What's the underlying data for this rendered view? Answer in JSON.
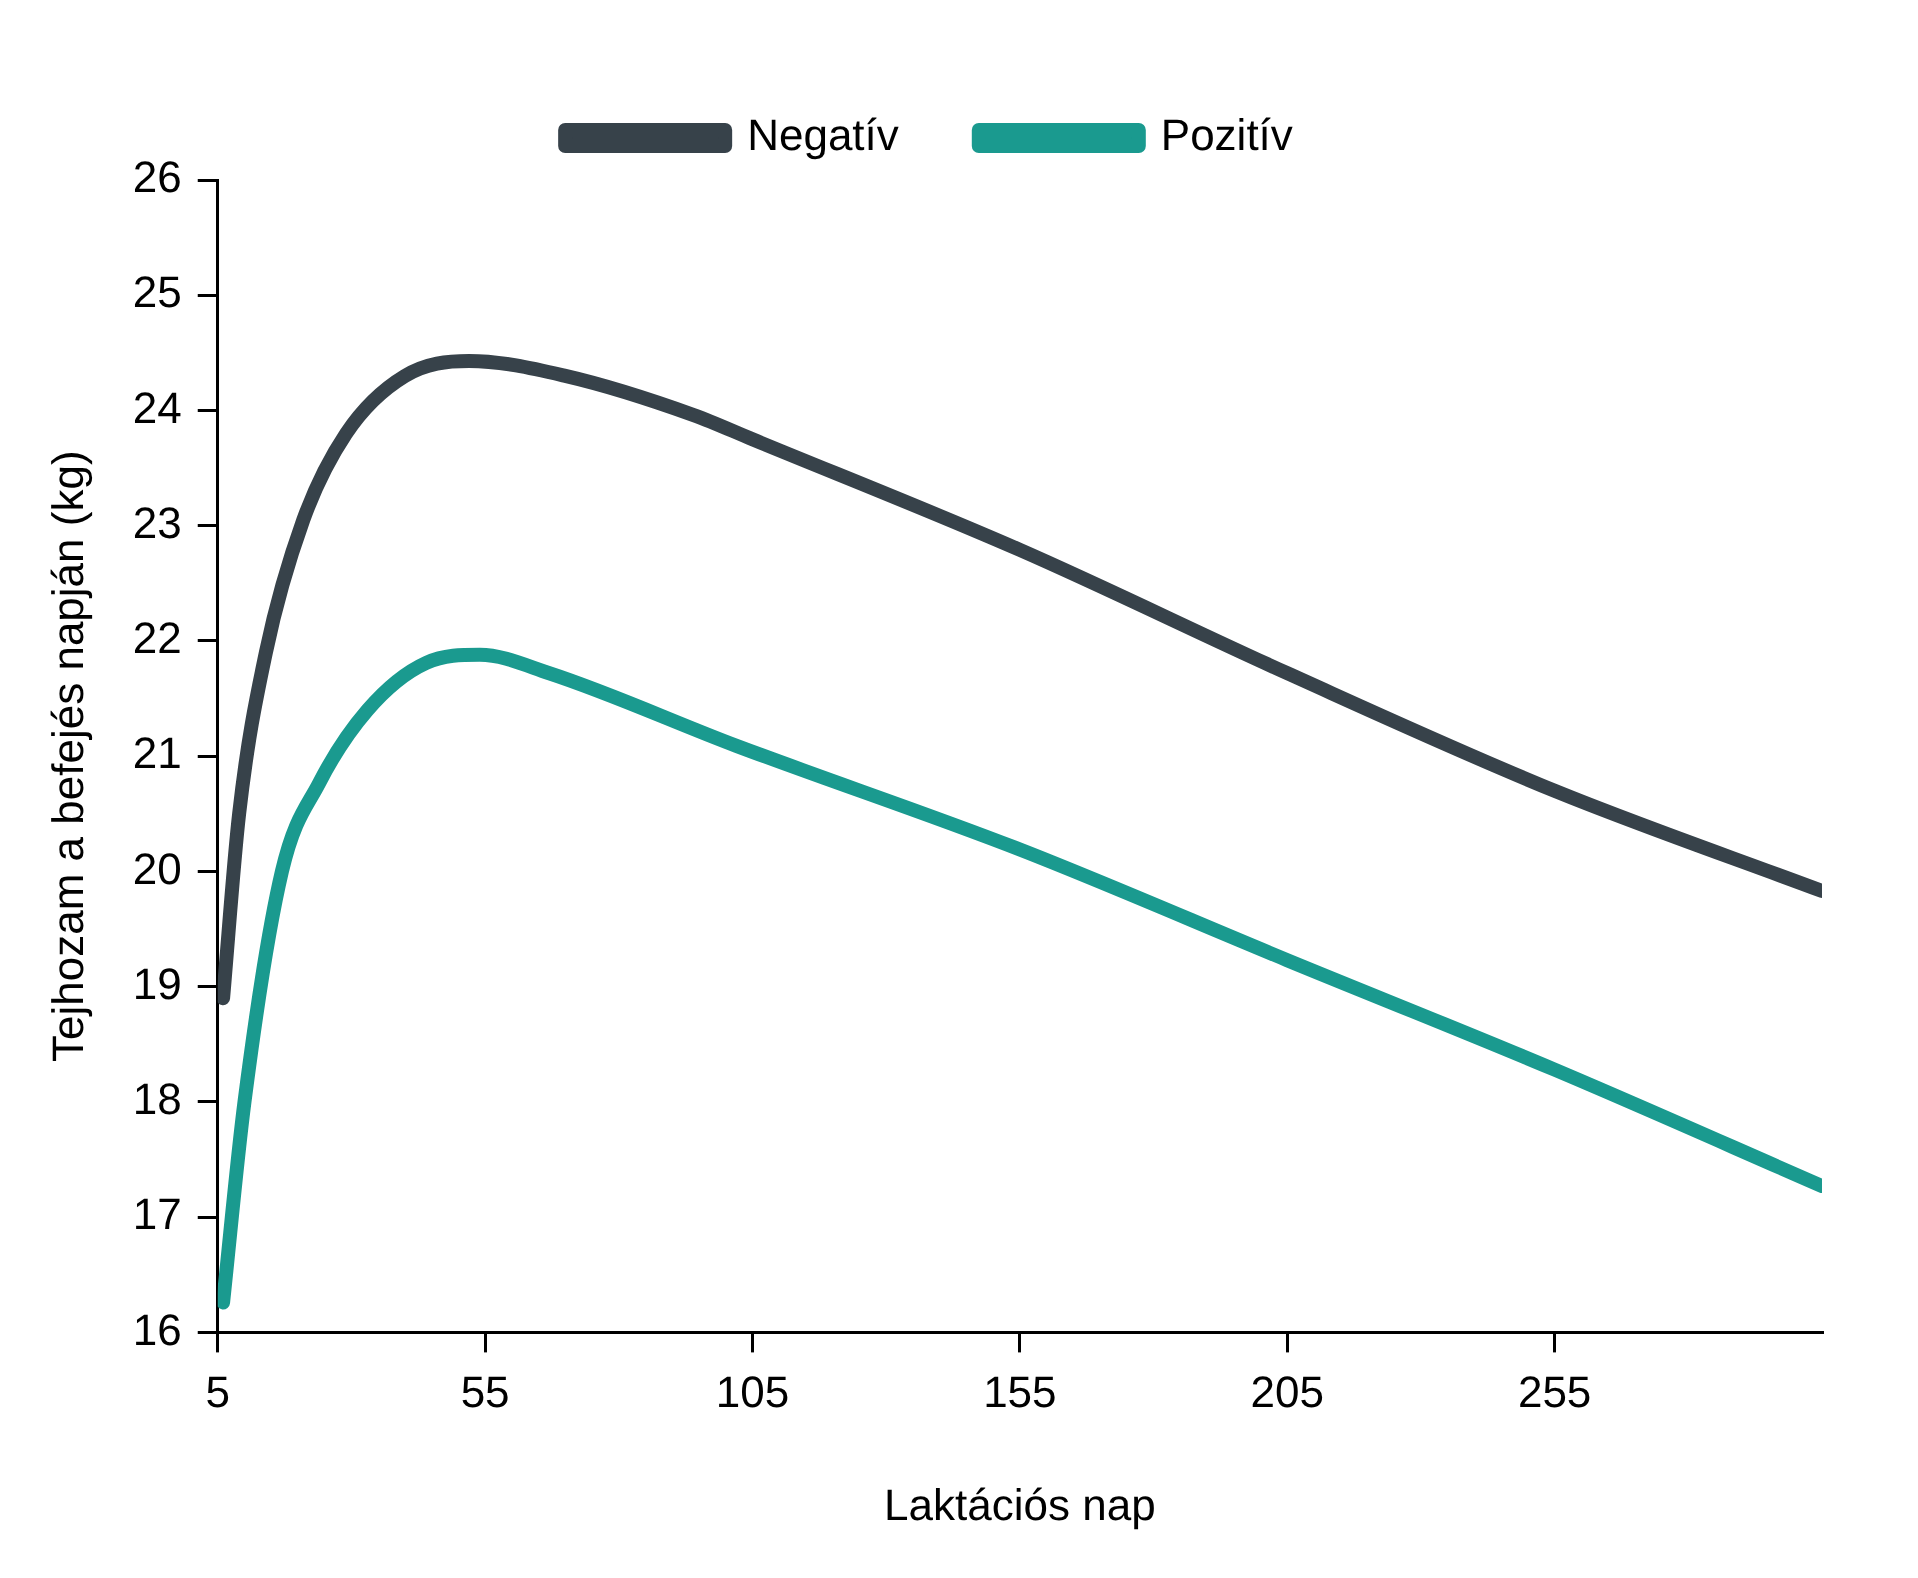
{
  "chart_data": {
    "type": "line",
    "xlabel": "Laktációs nap",
    "ylabel": "Tejhozam a befejés napján (kg)",
    "xlim": [
      5,
      305
    ],
    "xticks": [
      5,
      55,
      105,
      155,
      205,
      255
    ],
    "ylim": [
      16,
      26
    ],
    "yticks": [
      16,
      17,
      18,
      19,
      20,
      21,
      22,
      23,
      24,
      25,
      26
    ],
    "legend": "top",
    "grid": false,
    "marker": "none",
    "line_style": "solid",
    "series": [
      {
        "name": "Negatív",
        "color": "#37424a",
        "x": [
          6,
          9,
          14,
          21,
          29,
          40,
          52,
          70,
          94,
          105,
          155,
          205,
          255,
          305
        ],
        "values": [
          18.9,
          20.5,
          21.9,
          23.05,
          23.8,
          24.3,
          24.43,
          24.3,
          23.96,
          23.75,
          22.79,
          21.72,
          20.7,
          19.83
        ]
      },
      {
        "name": "Pozitív",
        "color": "#1a9a8f",
        "x": [
          6,
          10,
          17,
          24,
          33,
          44,
          54,
          67,
          102,
          155,
          205,
          255,
          305
        ],
        "values": [
          16.26,
          18.0,
          20.0,
          20.77,
          21.4,
          21.81,
          21.88,
          21.72,
          21.09,
          20.19,
          19.23,
          18.28,
          17.27
        ]
      }
    ]
  }
}
